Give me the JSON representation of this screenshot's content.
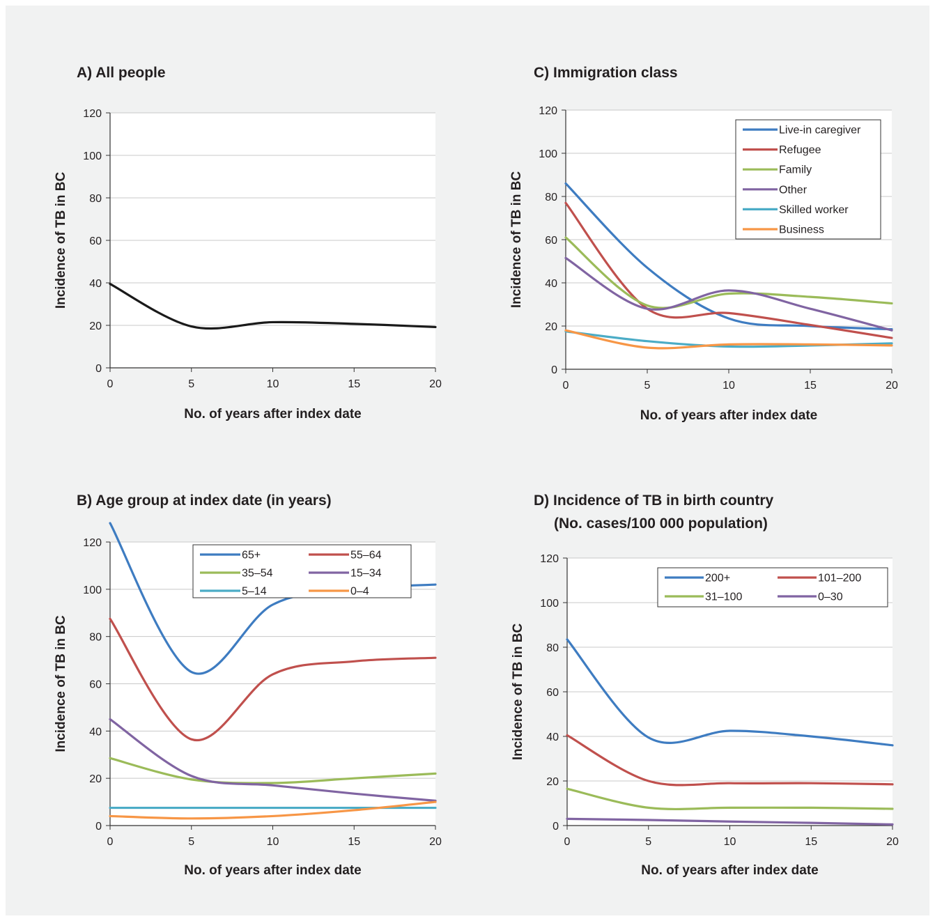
{
  "chart_data": [
    {
      "type": "line",
      "id": "A",
      "title": "A)  All people",
      "xlabel": "No. of years after index date",
      "ylabel": "Incidence of TB in BC",
      "xlim": [
        0,
        20
      ],
      "ylim": [
        0,
        120
      ],
      "xticks": [
        0,
        5,
        10,
        15,
        20
      ],
      "yticks": [
        0,
        20,
        40,
        60,
        80,
        100,
        120
      ],
      "grid": true,
      "legend": null,
      "x": [
        0,
        5,
        10,
        15,
        20
      ],
      "series": [
        {
          "color": "#1a1a1a",
          "values": [
            39.5,
            19.5,
            21.5,
            20.7,
            19.2
          ]
        }
      ]
    },
    {
      "type": "line",
      "id": "C",
      "title": "C) Immigration class",
      "xlabel": "No. of years after index date",
      "ylabel": "Incidence of TB in BC",
      "xlim": [
        0,
        20
      ],
      "ylim": [
        0,
        120
      ],
      "xticks": [
        0,
        5,
        10,
        15,
        20
      ],
      "yticks": [
        0,
        20,
        40,
        60,
        80,
        100,
        120
      ],
      "grid": true,
      "legend": {
        "placement": "top-right",
        "columns": 1
      },
      "x": [
        0,
        5,
        10,
        15,
        20
      ],
      "series": [
        {
          "name": "Live-in caregiver",
          "color": "#3e7cc1",
          "values": [
            86,
            47,
            23.5,
            20,
            18.5
          ]
        },
        {
          "name": "Refugee",
          "color": "#c0504d",
          "values": [
            77,
            28,
            26,
            20.5,
            14.5
          ]
        },
        {
          "name": "Family",
          "color": "#9bbb59",
          "values": [
            61,
            29.5,
            35,
            33.5,
            30.5
          ]
        },
        {
          "name": "Other",
          "color": "#8064a2",
          "values": [
            51.5,
            28,
            36.5,
            28,
            18
          ]
        },
        {
          "name": "Skilled worker",
          "color": "#4bacc6",
          "values": [
            17.5,
            13,
            10.5,
            11,
            12
          ]
        },
        {
          "name": "Business",
          "color": "#f79646",
          "values": [
            18,
            10,
            11.5,
            11.5,
            11
          ]
        }
      ]
    },
    {
      "type": "line",
      "id": "B",
      "title": "B) Age group at index date (in years)",
      "xlabel": "No. of years after index date",
      "ylabel": "Incidence of TB in BC",
      "xlim": [
        0,
        20
      ],
      "ylim": [
        0,
        120
      ],
      "xticks": [
        0,
        5,
        10,
        15,
        20
      ],
      "yticks": [
        0,
        20,
        40,
        60,
        80,
        100,
        120
      ],
      "grid": true,
      "legend": {
        "placement": "top-right",
        "columns": 2
      },
      "x": [
        0,
        5,
        10,
        15,
        20
      ],
      "series": [
        {
          "name": "65+",
          "color": "#3e7cc1",
          "values": [
            128,
            65,
            93.5,
            100,
            102
          ]
        },
        {
          "name": "55–64",
          "color": "#c0504d",
          "values": [
            87.5,
            36.5,
            64,
            69.5,
            71
          ]
        },
        {
          "name": "35–54",
          "color": "#9bbb59",
          "values": [
            28.5,
            19.5,
            18,
            20,
            22
          ]
        },
        {
          "name": "15–34",
          "color": "#8064a2",
          "values": [
            45,
            21,
            17,
            13.5,
            10.5
          ]
        },
        {
          "name": "5–14",
          "color": "#4bacc6",
          "values": [
            7.5,
            7.5,
            7.5,
            7.5,
            7.5
          ]
        },
        {
          "name": "0–4",
          "color": "#f79646",
          "values": [
            4,
            3,
            4,
            6.5,
            10
          ]
        }
      ]
    },
    {
      "type": "line",
      "id": "D",
      "title": "D) Incidence of TB in birth country",
      "subtitle": "(No. cases/100 000 population)",
      "xlabel": "No. of years after index date",
      "ylabel": "Incidence of TB in BC",
      "xlim": [
        0,
        20
      ],
      "ylim": [
        0,
        120
      ],
      "xticks": [
        0,
        5,
        10,
        15,
        20
      ],
      "yticks": [
        0,
        20,
        40,
        60,
        80,
        100,
        120
      ],
      "grid": true,
      "legend": {
        "placement": "top-right",
        "columns": 2
      },
      "x": [
        0,
        5,
        10,
        15,
        20
      ],
      "series": [
        {
          "name": "200+",
          "color": "#3e7cc1",
          "values": [
            83.5,
            39.5,
            42.5,
            40,
            36
          ]
        },
        {
          "name": "101–200",
          "color": "#c0504d",
          "values": [
            40.5,
            20,
            19,
            19,
            18.5
          ]
        },
        {
          "name": "31–100",
          "color": "#9bbb59",
          "values": [
            16.5,
            8,
            8,
            8,
            7.5
          ]
        },
        {
          "name": "0–30",
          "color": "#8064a2",
          "values": [
            3,
            2.5,
            1.8,
            1.2,
            0.5
          ]
        }
      ]
    }
  ]
}
